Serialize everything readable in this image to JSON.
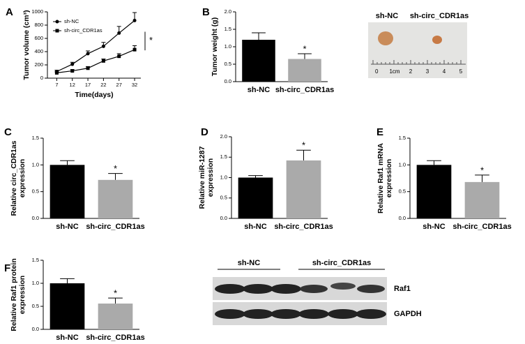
{
  "chart_data": [
    {
      "type": "line",
      "panel": "A",
      "ylabel": [
        "Tumor volume (cm³)"
      ],
      "xlabel": "Time(days)",
      "x": [
        7,
        12,
        17,
        22,
        27,
        32
      ],
      "xlim": [
        4,
        34
      ],
      "xticks": [
        7,
        12,
        17,
        22,
        27,
        32
      ],
      "ylim": [
        0,
        1000
      ],
      "yticks": [
        0,
        200,
        400,
        600,
        800,
        1000
      ],
      "series": [
        {
          "name": "sh-NC",
          "color": "#000000",
          "marker": "circle",
          "values": [
            100,
            210,
            370,
            480,
            680,
            870
          ],
          "errors": [
            20,
            30,
            40,
            60,
            100,
            120
          ]
        },
        {
          "name": "sh-circ_CDR1as",
          "color": "#000000",
          "marker": "square",
          "values": [
            80,
            110,
            150,
            260,
            330,
            430
          ],
          "errors": [
            15,
            20,
            25,
            30,
            40,
            60
          ]
        }
      ],
      "annotation": "*"
    },
    {
      "type": "bar",
      "panel": "B",
      "ylabel": [
        "Tumor weight (g)"
      ],
      "categories": [
        "sh-NC",
        "sh-circ_CDR1as"
      ],
      "values": [
        1.2,
        0.65
      ],
      "errors": [
        0.2,
        0.15
      ],
      "colors": [
        "#000000",
        "#aaaaaa"
      ],
      "ylim": [
        0,
        2
      ],
      "yticks": [
        {
          "value": 0,
          "label": "0.0"
        },
        0.5,
        {
          "value": 1,
          "label": "1.0"
        },
        1.5,
        {
          "value": 2,
          "label": "2.0"
        }
      ],
      "annotation": "*"
    },
    {
      "type": "bar",
      "panel": "C",
      "ylabel": [
        "Relative circ_CDR1as",
        "expression"
      ],
      "categories": [
        "sh-NC",
        "sh-circ_CDR1as"
      ],
      "values": [
        1.0,
        0.72
      ],
      "errors": [
        0.08,
        0.12
      ],
      "colors": [
        "#000000",
        "#aaaaaa"
      ],
      "ylim": [
        0,
        1.5
      ],
      "yticks": [
        {
          "value": 0,
          "label": "0.0"
        },
        0.5,
        {
          "value": 1,
          "label": "1.0"
        },
        1.5
      ],
      "annotation": "*"
    },
    {
      "type": "bar",
      "panel": "D",
      "ylabel": [
        "Relative miR-1287",
        "expression"
      ],
      "categories": [
        "sh-NC",
        "sh-circ_CDR1as"
      ],
      "values": [
        1.0,
        1.42
      ],
      "errors": [
        0.05,
        0.25
      ],
      "colors": [
        "#000000",
        "#aaaaaa"
      ],
      "ylim": [
        0,
        2
      ],
      "yticks": [
        {
          "value": 0,
          "label": "0.0"
        },
        0.5,
        {
          "value": 1,
          "label": "1.0"
        },
        1.5,
        {
          "value": 2,
          "label": "2.0"
        }
      ],
      "annotation": "*"
    },
    {
      "type": "bar",
      "panel": "E",
      "ylabel": [
        "Relative Raf1 mRNA",
        "expression"
      ],
      "categories": [
        "sh-NC",
        "sh-circ_CDR1as"
      ],
      "values": [
        1.0,
        0.68
      ],
      "errors": [
        0.08,
        0.13
      ],
      "colors": [
        "#000000",
        "#aaaaaa"
      ],
      "ylim": [
        0,
        1.5
      ],
      "yticks": [
        {
          "value": 0,
          "label": "0.0"
        },
        0.5,
        {
          "value": 1,
          "label": "1.0"
        },
        1.5
      ],
      "annotation": "*"
    },
    {
      "type": "bar",
      "panel": "F",
      "ylabel": [
        "Relative Raf1 protein",
        "expression"
      ],
      "categories": [
        "sh-NC",
        "sh-circ_CDR1as"
      ],
      "values": [
        1.0,
        0.56
      ],
      "errors": [
        0.1,
        0.12
      ],
      "colors": [
        "#000000",
        "#aaaaaa"
      ],
      "ylim": [
        0,
        1.5
      ],
      "yticks": [
        {
          "value": 0,
          "label": "0.0"
        },
        0.5,
        {
          "value": 1,
          "label": "1.0"
        },
        1.5
      ],
      "annotation": "*"
    }
  ],
  "photo": {
    "labels": [
      "sh-NC",
      "sh-circ_CDR1as"
    ],
    "ruler": [
      "0",
      "1cm",
      "2",
      "3",
      "4",
      "5"
    ]
  },
  "blot": {
    "groups": [
      "sh-NC",
      "sh-circ_CDR1as"
    ],
    "rows": [
      "Raf1",
      "GAPDH"
    ]
  }
}
